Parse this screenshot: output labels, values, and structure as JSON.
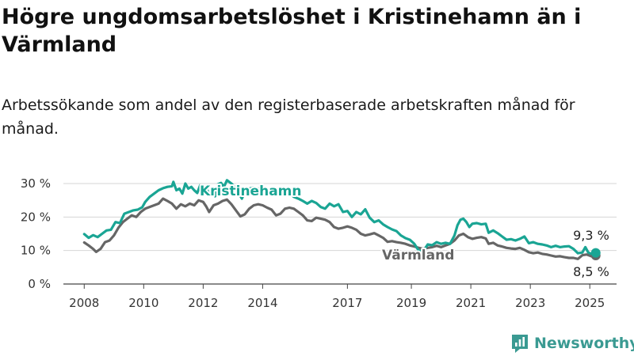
{
  "title": "Högre ungdomsarbetslöshet i Kristinehamn än i Värmland",
  "subtitle": "Arbetssökande som andel av den registerbaserade arbetskraften månad för månad.",
  "brand": {
    "name": "Newsworthy",
    "color": "#3a9a92",
    "icon": "bar-chart-logo-icon"
  },
  "chart_data": {
    "type": "line",
    "x_ticks": [
      "2008",
      "2010",
      "2012",
      "2014",
      "2017",
      "2019",
      "2021",
      "2023",
      "2025"
    ],
    "x_tick_values": [
      2008.0,
      2010.0,
      2012.0,
      2014.0,
      2016.85,
      2019.0,
      2021.0,
      2023.0,
      2025.0
    ],
    "y_ticks": [
      "0 %",
      "10 %",
      "20 %",
      "30 %"
    ],
    "y_tick_values": [
      0,
      10,
      20,
      30
    ],
    "xlim": [
      2007.3,
      2025.9
    ],
    "ylim": [
      0,
      30
    ],
    "grid": true,
    "series": [
      {
        "name": "Kristinehamn",
        "color": "#1aa594",
        "end_label": "9,3 %",
        "points": [
          [
            2008.0,
            14.9
          ],
          [
            2008.15,
            13.8
          ],
          [
            2008.3,
            14.6
          ],
          [
            2008.45,
            14.0
          ],
          [
            2008.6,
            15.0
          ],
          [
            2008.75,
            16.0
          ],
          [
            2008.9,
            16.2
          ],
          [
            2009.05,
            18.5
          ],
          [
            2009.2,
            18.2
          ],
          [
            2009.35,
            21.0
          ],
          [
            2009.5,
            21.5
          ],
          [
            2009.65,
            22.0
          ],
          [
            2009.8,
            22.2
          ],
          [
            2009.95,
            22.9
          ],
          [
            2010.05,
            24.5
          ],
          [
            2010.2,
            26.0
          ],
          [
            2010.35,
            27.0
          ],
          [
            2010.5,
            28.0
          ],
          [
            2010.65,
            28.6
          ],
          [
            2010.8,
            29.0
          ],
          [
            2010.95,
            29.2
          ],
          [
            2011.0,
            30.5
          ],
          [
            2011.1,
            28.0
          ],
          [
            2011.2,
            28.5
          ],
          [
            2011.3,
            27.0
          ],
          [
            2011.4,
            30.0
          ],
          [
            2011.5,
            28.5
          ],
          [
            2011.6,
            29.0
          ],
          [
            2011.7,
            28.0
          ],
          [
            2011.8,
            27.2
          ],
          [
            2011.9,
            29.5
          ],
          [
            2012.0,
            28.8
          ],
          [
            2012.1,
            29.2
          ],
          [
            2012.2,
            26.5
          ],
          [
            2012.3,
            27.8
          ],
          [
            2012.4,
            26.2
          ],
          [
            2012.5,
            29.8
          ],
          [
            2012.6,
            30.2
          ],
          [
            2012.7,
            29.0
          ],
          [
            2012.8,
            31.0
          ],
          [
            2012.95,
            30.0
          ],
          [
            2013.1,
            28.5
          ],
          [
            2013.2,
            27.0
          ],
          [
            2013.3,
            25.5
          ],
          [
            2013.4,
            27.5
          ],
          [
            2013.55,
            28.5
          ],
          [
            2013.7,
            28.8
          ],
          [
            2013.85,
            28.5
          ],
          [
            2014.0,
            28.0
          ],
          [
            2014.15,
            27.0
          ],
          [
            2014.3,
            26.5
          ],
          [
            2014.45,
            27.0
          ],
          [
            2014.6,
            28.2
          ],
          [
            2014.75,
            28.0
          ],
          [
            2014.9,
            27.2
          ],
          [
            2015.05,
            26.0
          ],
          [
            2015.2,
            25.5
          ],
          [
            2015.35,
            24.8
          ],
          [
            2015.5,
            24.0
          ],
          [
            2015.65,
            24.8
          ],
          [
            2015.8,
            24.2
          ],
          [
            2015.95,
            23.0
          ],
          [
            2016.1,
            22.5
          ],
          [
            2016.25,
            24.0
          ],
          [
            2016.4,
            23.2
          ],
          [
            2016.55,
            23.8
          ],
          [
            2016.7,
            21.5
          ],
          [
            2016.85,
            21.8
          ],
          [
            2017.0,
            20.0
          ],
          [
            2017.15,
            21.5
          ],
          [
            2017.3,
            20.8
          ],
          [
            2017.45,
            22.3
          ],
          [
            2017.6,
            19.8
          ],
          [
            2017.75,
            18.5
          ],
          [
            2017.9,
            19.0
          ],
          [
            2018.05,
            17.8
          ],
          [
            2018.2,
            17.0
          ],
          [
            2018.35,
            16.3
          ],
          [
            2018.5,
            15.8
          ],
          [
            2018.65,
            14.5
          ],
          [
            2018.8,
            13.7
          ],
          [
            2018.95,
            13.2
          ],
          [
            2019.1,
            12.0
          ],
          [
            2019.25,
            10.0
          ],
          [
            2019.4,
            9.8
          ],
          [
            2019.55,
            11.8
          ],
          [
            2019.7,
            11.6
          ],
          [
            2019.85,
            12.5
          ],
          [
            2020.0,
            12.0
          ],
          [
            2020.15,
            12.3
          ],
          [
            2020.3,
            12.0
          ],
          [
            2020.45,
            14.5
          ],
          [
            2020.55,
            17.5
          ],
          [
            2020.65,
            19.2
          ],
          [
            2020.75,
            19.5
          ],
          [
            2020.85,
            18.5
          ],
          [
            2020.95,
            17.0
          ],
          [
            2021.05,
            18.0
          ],
          [
            2021.2,
            18.2
          ],
          [
            2021.35,
            17.8
          ],
          [
            2021.5,
            18.0
          ],
          [
            2021.6,
            15.3
          ],
          [
            2021.75,
            16.0
          ],
          [
            2021.9,
            15.2
          ],
          [
            2022.05,
            14.2
          ],
          [
            2022.2,
            13.2
          ],
          [
            2022.35,
            13.4
          ],
          [
            2022.5,
            13.0
          ],
          [
            2022.65,
            13.5
          ],
          [
            2022.8,
            14.2
          ],
          [
            2022.95,
            12.2
          ],
          [
            2023.1,
            12.5
          ],
          [
            2023.25,
            12.0
          ],
          [
            2023.4,
            11.8
          ],
          [
            2023.55,
            11.5
          ],
          [
            2023.7,
            11.0
          ],
          [
            2023.85,
            11.4
          ],
          [
            2024.0,
            11.0
          ],
          [
            2024.15,
            11.2
          ],
          [
            2024.3,
            11.3
          ],
          [
            2024.45,
            10.5
          ],
          [
            2024.6,
            9.2
          ],
          [
            2024.75,
            9.4
          ],
          [
            2024.85,
            11.0
          ],
          [
            2024.95,
            9.4
          ],
          [
            2025.05,
            9.0
          ],
          [
            2025.2,
            9.3
          ]
        ]
      },
      {
        "name": "Värmland",
        "color": "#666666",
        "end_label": "8,5 %",
        "points": [
          [
            2008.0,
            12.4
          ],
          [
            2008.15,
            11.5
          ],
          [
            2008.3,
            10.5
          ],
          [
            2008.4,
            9.6
          ],
          [
            2008.55,
            10.5
          ],
          [
            2008.7,
            12.5
          ],
          [
            2008.85,
            13.0
          ],
          [
            2009.0,
            14.5
          ],
          [
            2009.15,
            16.8
          ],
          [
            2009.3,
            18.5
          ],
          [
            2009.45,
            19.5
          ],
          [
            2009.6,
            20.5
          ],
          [
            2009.75,
            20.0
          ],
          [
            2009.9,
            21.5
          ],
          [
            2010.05,
            22.5
          ],
          [
            2010.2,
            23.0
          ],
          [
            2010.35,
            23.5
          ],
          [
            2010.5,
            24.0
          ],
          [
            2010.65,
            25.5
          ],
          [
            2010.8,
            24.8
          ],
          [
            2010.95,
            24.0
          ],
          [
            2011.1,
            22.5
          ],
          [
            2011.25,
            23.8
          ],
          [
            2011.4,
            23.2
          ],
          [
            2011.55,
            24.0
          ],
          [
            2011.7,
            23.5
          ],
          [
            2011.85,
            25.0
          ],
          [
            2012.0,
            24.5
          ],
          [
            2012.1,
            23.2
          ],
          [
            2012.2,
            21.5
          ],
          [
            2012.35,
            23.5
          ],
          [
            2012.5,
            24.0
          ],
          [
            2012.65,
            24.8
          ],
          [
            2012.8,
            25.2
          ],
          [
            2012.95,
            23.8
          ],
          [
            2013.1,
            22.0
          ],
          [
            2013.25,
            20.2
          ],
          [
            2013.4,
            20.8
          ],
          [
            2013.55,
            22.5
          ],
          [
            2013.7,
            23.5
          ],
          [
            2013.85,
            23.8
          ],
          [
            2014.0,
            23.5
          ],
          [
            2014.15,
            22.8
          ],
          [
            2014.3,
            22.2
          ],
          [
            2014.45,
            20.5
          ],
          [
            2014.6,
            21.0
          ],
          [
            2014.75,
            22.5
          ],
          [
            2014.9,
            22.8
          ],
          [
            2015.05,
            22.5
          ],
          [
            2015.2,
            21.5
          ],
          [
            2015.35,
            20.5
          ],
          [
            2015.5,
            19.0
          ],
          [
            2015.65,
            18.8
          ],
          [
            2015.8,
            19.8
          ],
          [
            2015.95,
            19.5
          ],
          [
            2016.1,
            19.2
          ],
          [
            2016.25,
            18.5
          ],
          [
            2016.4,
            17.0
          ],
          [
            2016.55,
            16.5
          ],
          [
            2016.7,
            16.8
          ],
          [
            2016.85,
            17.2
          ],
          [
            2017.0,
            16.8
          ],
          [
            2017.15,
            16.2
          ],
          [
            2017.3,
            15.0
          ],
          [
            2017.45,
            14.5
          ],
          [
            2017.6,
            14.8
          ],
          [
            2017.75,
            15.2
          ],
          [
            2017.9,
            14.5
          ],
          [
            2018.05,
            13.8
          ],
          [
            2018.2,
            12.6
          ],
          [
            2018.35,
            12.8
          ],
          [
            2018.5,
            12.5
          ],
          [
            2018.65,
            12.3
          ],
          [
            2018.8,
            12.0
          ],
          [
            2018.95,
            11.5
          ],
          [
            2019.1,
            11.2
          ],
          [
            2019.25,
            10.8
          ],
          [
            2019.4,
            10.5
          ],
          [
            2019.55,
            10.8
          ],
          [
            2019.7,
            11.0
          ],
          [
            2019.85,
            11.4
          ],
          [
            2020.0,
            11.0
          ],
          [
            2020.15,
            11.5
          ],
          [
            2020.3,
            12.0
          ],
          [
            2020.45,
            13.0
          ],
          [
            2020.6,
            14.5
          ],
          [
            2020.75,
            15.0
          ],
          [
            2020.9,
            14.0
          ],
          [
            2021.05,
            13.5
          ],
          [
            2021.2,
            13.8
          ],
          [
            2021.35,
            14.0
          ],
          [
            2021.5,
            13.6
          ],
          [
            2021.6,
            12.0
          ],
          [
            2021.75,
            12.3
          ],
          [
            2021.9,
            11.5
          ],
          [
            2022.05,
            11.2
          ],
          [
            2022.2,
            10.8
          ],
          [
            2022.35,
            10.6
          ],
          [
            2022.5,
            10.5
          ],
          [
            2022.65,
            10.8
          ],
          [
            2022.8,
            10.2
          ],
          [
            2022.95,
            9.5
          ],
          [
            2023.1,
            9.2
          ],
          [
            2023.25,
            9.4
          ],
          [
            2023.4,
            9.0
          ],
          [
            2023.55,
            8.8
          ],
          [
            2023.7,
            8.5
          ],
          [
            2023.85,
            8.2
          ],
          [
            2024.0,
            8.3
          ],
          [
            2024.15,
            8.0
          ],
          [
            2024.3,
            7.8
          ],
          [
            2024.45,
            7.8
          ],
          [
            2024.6,
            7.5
          ],
          [
            2024.75,
            8.6
          ],
          [
            2024.9,
            8.8
          ],
          [
            2025.05,
            8.3
          ],
          [
            2025.2,
            8.5
          ]
        ]
      }
    ]
  }
}
